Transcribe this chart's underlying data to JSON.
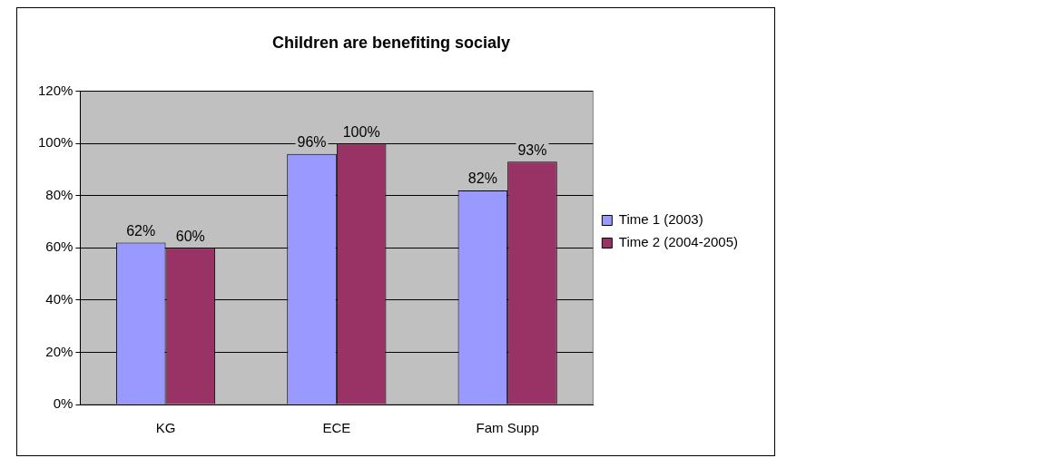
{
  "chart_data": {
    "type": "bar",
    "title": "Children are benefiting socialy",
    "categories": [
      "KG",
      "ECE",
      "Fam Supp"
    ],
    "series": [
      {
        "name": "Time 1 (2003)",
        "color": "#9999ff",
        "values": [
          62,
          96,
          82
        ],
        "value_labels": [
          "62%",
          "96%",
          "82%"
        ]
      },
      {
        "name": "Time 2 (2004-2005)",
        "color": "#993366",
        "values": [
          60,
          100,
          93
        ],
        "value_labels": [
          "60%",
          "100%",
          "93%"
        ]
      }
    ],
    "ylim": [
      0,
      120
    ],
    "yticks": [
      {
        "value": 0,
        "label": "0%"
      },
      {
        "value": 20,
        "label": "20%"
      },
      {
        "value": 40,
        "label": "40%"
      },
      {
        "value": 60,
        "label": "60%"
      },
      {
        "value": 80,
        "label": "80%"
      },
      {
        "value": 100,
        "label": "100%"
      },
      {
        "value": 120,
        "label": "120%"
      }
    ],
    "grid": "y",
    "legend": "right"
  }
}
